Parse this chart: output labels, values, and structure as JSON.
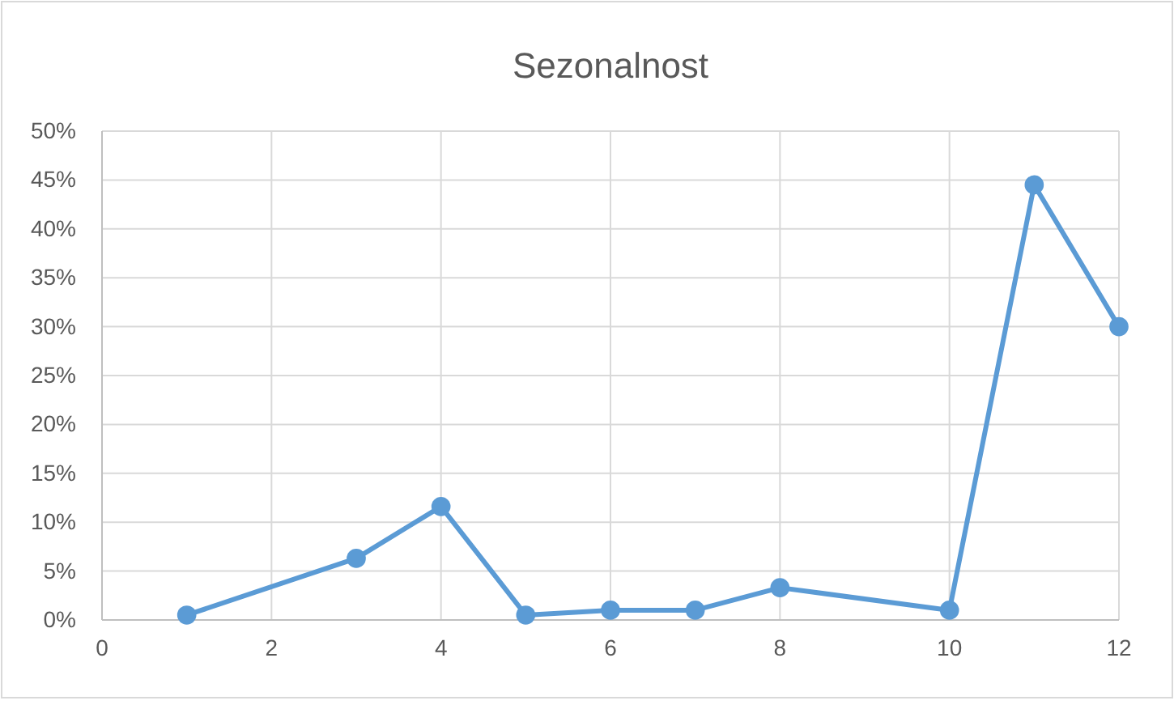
{
  "chart_data": {
    "type": "line",
    "title": "Sezonalnost",
    "x": [
      1,
      3,
      4,
      5,
      6,
      7,
      8,
      10,
      11,
      12
    ],
    "series": [
      {
        "color": "#5b9bd5",
        "values": [
          0.5,
          6.3,
          11.6,
          0.5,
          1,
          1,
          3.3,
          1,
          44.5,
          30
        ]
      }
    ],
    "xlim": [
      0,
      12
    ],
    "xticks": [
      0,
      2,
      4,
      6,
      8,
      10,
      12
    ],
    "ylim": [
      0,
      50
    ],
    "yticks": [
      {
        "value": 0,
        "label": "0%"
      },
      {
        "value": 5,
        "label": "5%"
      },
      {
        "value": 10,
        "label": "10%"
      },
      {
        "value": 15,
        "label": "15%"
      },
      {
        "value": 20,
        "label": "20%"
      },
      {
        "value": 25,
        "label": "25%"
      },
      {
        "value": 30,
        "label": "30%"
      },
      {
        "value": 35,
        "label": "35%"
      },
      {
        "value": 40,
        "label": "40%"
      },
      {
        "value": 45,
        "label": "45%"
      },
      {
        "value": 50,
        "label": "50%"
      }
    ],
    "grid": true,
    "marker": "circle",
    "line_style": "solid",
    "legend": false
  }
}
